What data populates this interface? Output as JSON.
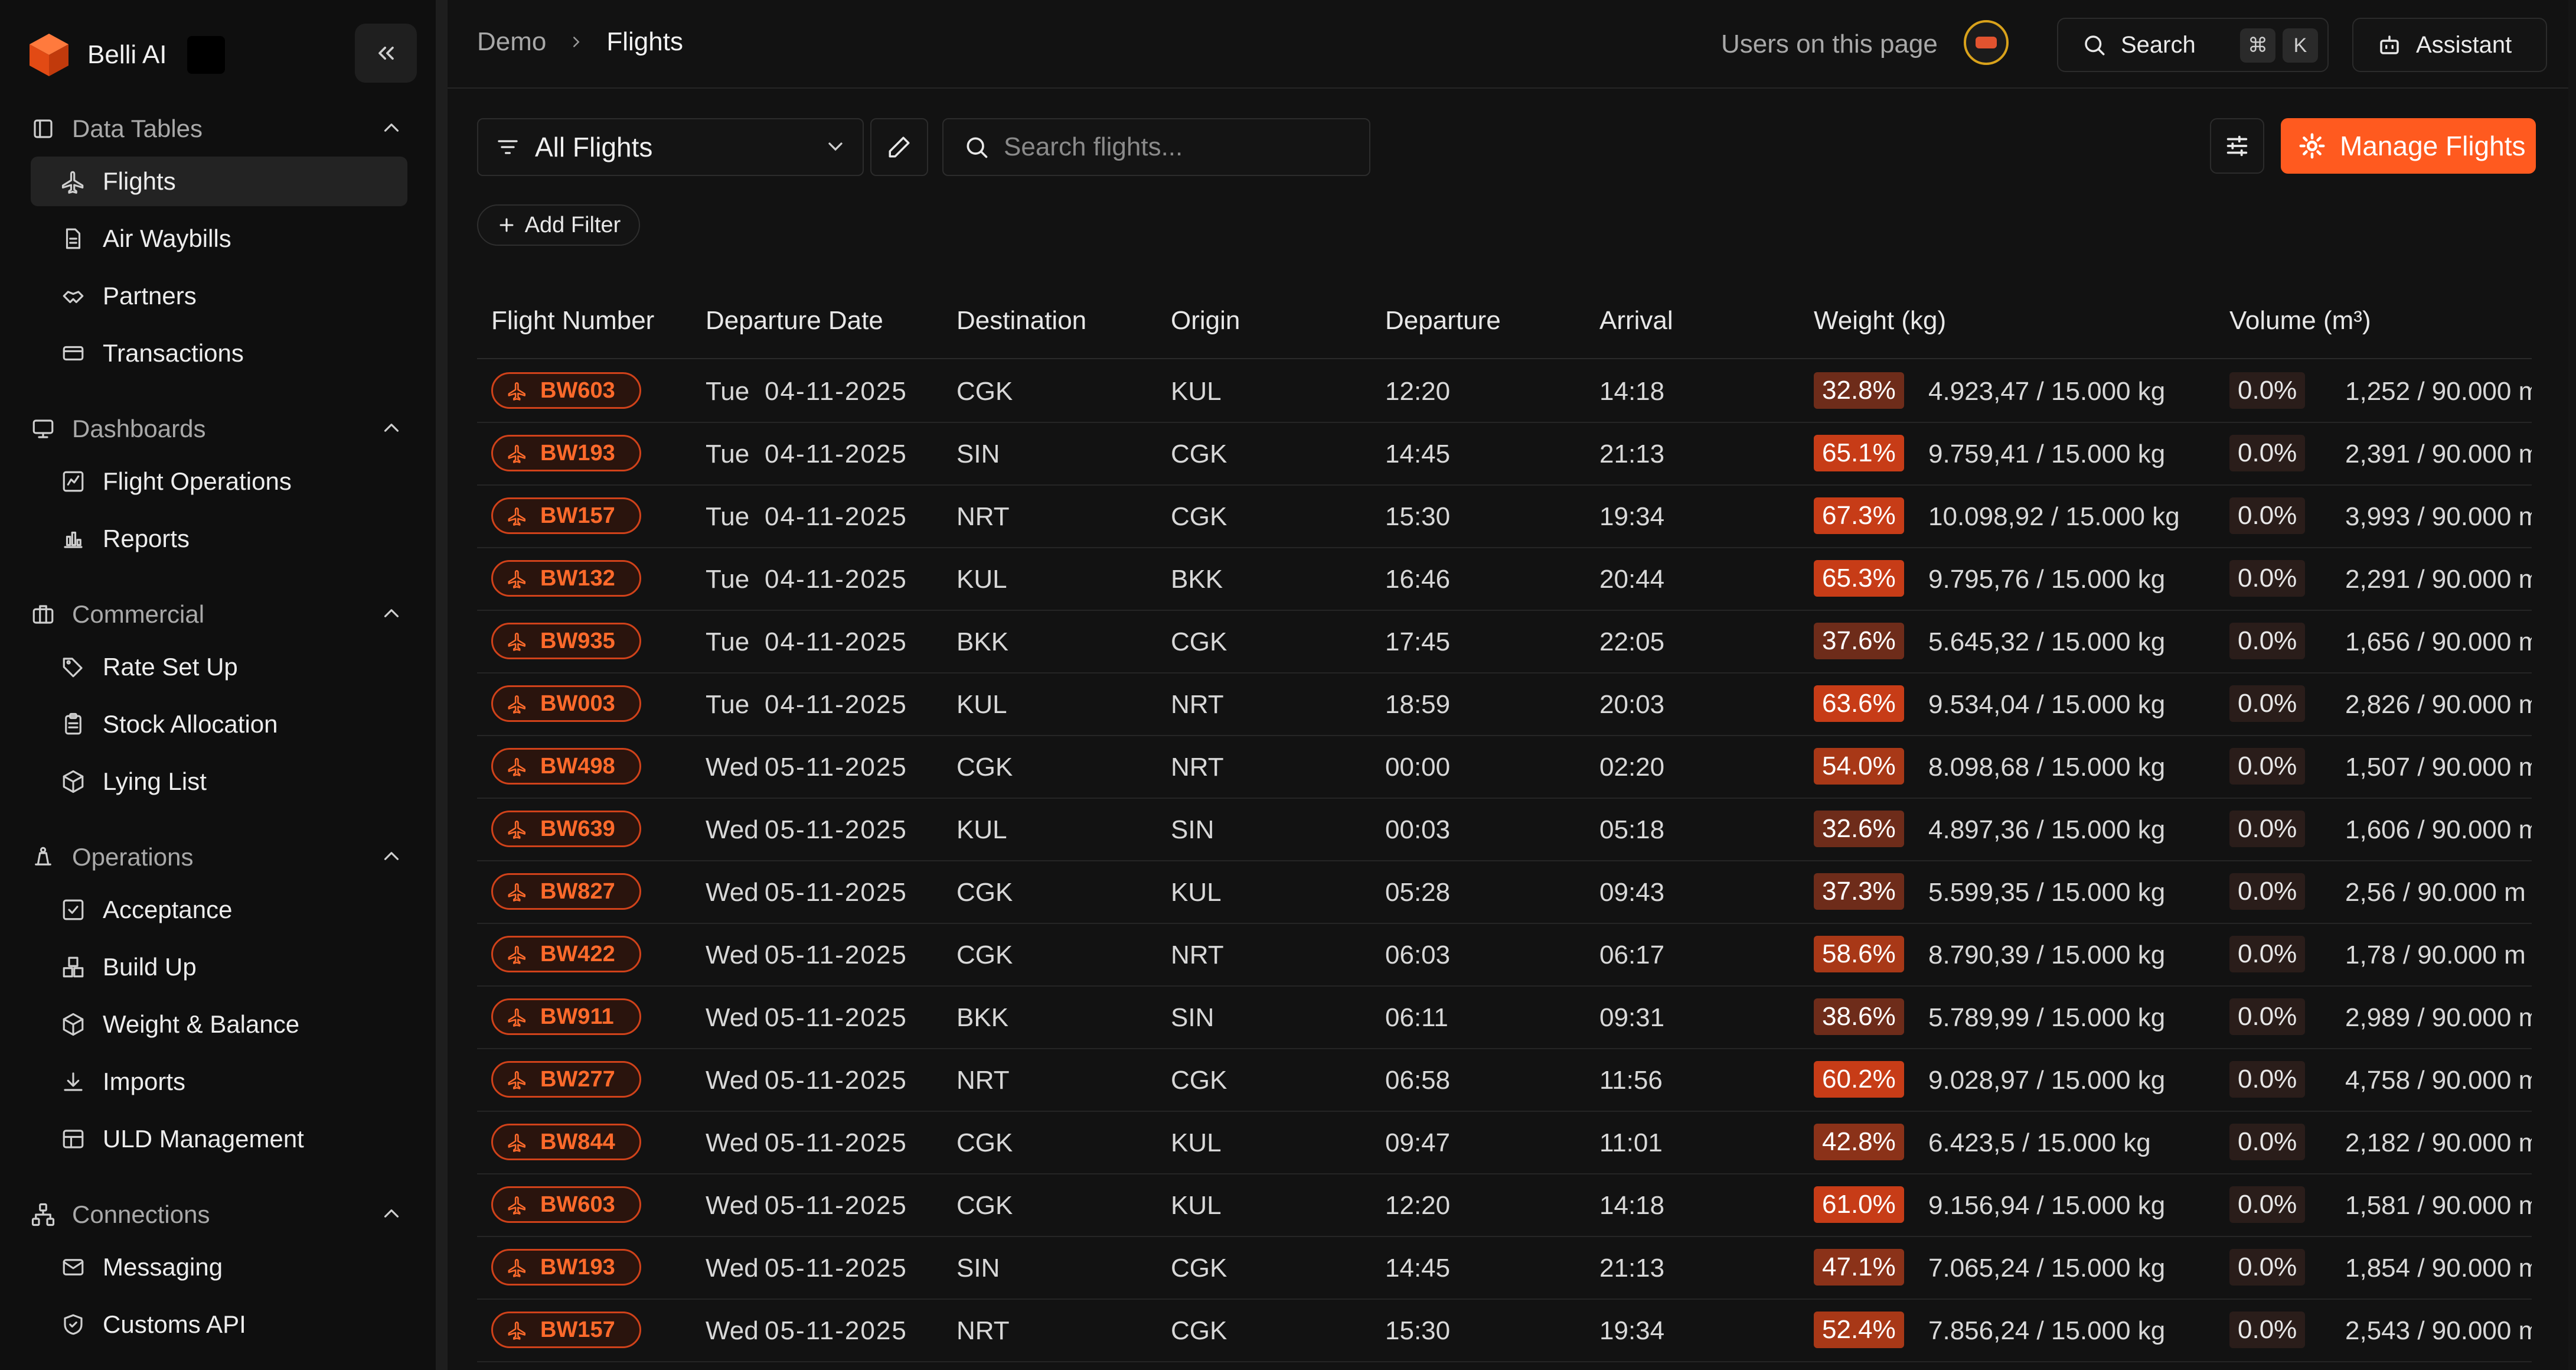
{
  "app": {
    "name": "Belli AI"
  },
  "sidebar": {
    "sections": [
      {
        "title": "Data Tables",
        "items": [
          "Flights",
          "Air Waybills",
          "Partners",
          "Transactions"
        ]
      },
      {
        "title": "Dashboards",
        "items": [
          "Flight Operations",
          "Reports"
        ]
      },
      {
        "title": "Commercial",
        "items": [
          "Rate Set Up",
          "Stock Allocation",
          "Lying List"
        ]
      },
      {
        "title": "Operations",
        "items": [
          "Acceptance",
          "Build Up",
          "Weight & Balance",
          "Imports",
          "ULD Management"
        ]
      },
      {
        "title": "Connections",
        "items": [
          "Messaging",
          "Customs API"
        ]
      }
    ],
    "active_item": "Flights"
  },
  "header": {
    "breadcrumb": [
      "Demo",
      "Flights"
    ],
    "users_label": "Users on this page",
    "search_label": "Search",
    "search_shortcut": [
      "⌘",
      "K"
    ],
    "assistant_label": "Assistant"
  },
  "toolbar": {
    "view_label": "All Flights",
    "search_placeholder": "Search flights...",
    "manage_label": "Manage Flights",
    "add_filter_label": "Add Filter"
  },
  "table": {
    "columns": [
      "Flight Number",
      "Departure Date",
      "Destination",
      "Origin",
      "Departure",
      "Arrival",
      "Weight (kg)",
      "Volume (m³)"
    ],
    "rows": [
      {
        "flight": "BW603",
        "day": "Tue",
        "date": "04-11-2025",
        "dest": "CGK",
        "origin": "KUL",
        "dep": "12:20",
        "arr": "14:18",
        "wpct": "32.8%",
        "wtext": "4.923,47 / 15.000 kg",
        "vpct": "0.0%",
        "vtext": "1,252 / 90.000 m"
      },
      {
        "flight": "BW193",
        "day": "Tue",
        "date": "04-11-2025",
        "dest": "SIN",
        "origin": "CGK",
        "dep": "14:45",
        "arr": "21:13",
        "wpct": "65.1%",
        "wtext": "9.759,41 / 15.000 kg",
        "vpct": "0.0%",
        "vtext": "2,391 / 90.000 m"
      },
      {
        "flight": "BW157",
        "day": "Tue",
        "date": "04-11-2025",
        "dest": "NRT",
        "origin": "CGK",
        "dep": "15:30",
        "arr": "19:34",
        "wpct": "67.3%",
        "wtext": "10.098,92 / 15.000 kg",
        "vpct": "0.0%",
        "vtext": "3,993 / 90.000 m"
      },
      {
        "flight": "BW132",
        "day": "Tue",
        "date": "04-11-2025",
        "dest": "KUL",
        "origin": "BKK",
        "dep": "16:46",
        "arr": "20:44",
        "wpct": "65.3%",
        "wtext": "9.795,76 / 15.000 kg",
        "vpct": "0.0%",
        "vtext": "2,291 / 90.000 m"
      },
      {
        "flight": "BW935",
        "day": "Tue",
        "date": "04-11-2025",
        "dest": "BKK",
        "origin": "CGK",
        "dep": "17:45",
        "arr": "22:05",
        "wpct": "37.6%",
        "wtext": "5.645,32 / 15.000 kg",
        "vpct": "0.0%",
        "vtext": "1,656 / 90.000 m"
      },
      {
        "flight": "BW003",
        "day": "Tue",
        "date": "04-11-2025",
        "dest": "KUL",
        "origin": "NRT",
        "dep": "18:59",
        "arr": "20:03",
        "wpct": "63.6%",
        "wtext": "9.534,04 / 15.000 kg",
        "vpct": "0.0%",
        "vtext": "2,826 / 90.000 m"
      },
      {
        "flight": "BW498",
        "day": "Wed",
        "date": "05-11-2025",
        "dest": "CGK",
        "origin": "NRT",
        "dep": "00:00",
        "arr": "02:20",
        "wpct": "54.0%",
        "wtext": "8.098,68 / 15.000 kg",
        "vpct": "0.0%",
        "vtext": "1,507 / 90.000 m"
      },
      {
        "flight": "BW639",
        "day": "Wed",
        "date": "05-11-2025",
        "dest": "KUL",
        "origin": "SIN",
        "dep": "00:03",
        "arr": "05:18",
        "wpct": "32.6%",
        "wtext": "4.897,36 / 15.000 kg",
        "vpct": "0.0%",
        "vtext": "1,606 / 90.000 m"
      },
      {
        "flight": "BW827",
        "day": "Wed",
        "date": "05-11-2025",
        "dest": "CGK",
        "origin": "KUL",
        "dep": "05:28",
        "arr": "09:43",
        "wpct": "37.3%",
        "wtext": "5.599,35 / 15.000 kg",
        "vpct": "0.0%",
        "vtext": "2,56 / 90.000 m"
      },
      {
        "flight": "BW422",
        "day": "Wed",
        "date": "05-11-2025",
        "dest": "CGK",
        "origin": "NRT",
        "dep": "06:03",
        "arr": "06:17",
        "wpct": "58.6%",
        "wtext": "8.790,39 / 15.000 kg",
        "vpct": "0.0%",
        "vtext": "1,78 / 90.000 m"
      },
      {
        "flight": "BW911",
        "day": "Wed",
        "date": "05-11-2025",
        "dest": "BKK",
        "origin": "SIN",
        "dep": "06:11",
        "arr": "09:31",
        "wpct": "38.6%",
        "wtext": "5.789,99 / 15.000 kg",
        "vpct": "0.0%",
        "vtext": "2,989 / 90.000 m"
      },
      {
        "flight": "BW277",
        "day": "Wed",
        "date": "05-11-2025",
        "dest": "NRT",
        "origin": "CGK",
        "dep": "06:58",
        "arr": "11:56",
        "wpct": "60.2%",
        "wtext": "9.028,97 / 15.000 kg",
        "vpct": "0.0%",
        "vtext": "4,758 / 90.000 m"
      },
      {
        "flight": "BW844",
        "day": "Wed",
        "date": "05-11-2025",
        "dest": "CGK",
        "origin": "KUL",
        "dep": "09:47",
        "arr": "11:01",
        "wpct": "42.8%",
        "wtext": "6.423,5 / 15.000 kg",
        "vpct": "0.0%",
        "vtext": "2,182 / 90.000 m"
      },
      {
        "flight": "BW603",
        "day": "Wed",
        "date": "05-11-2025",
        "dest": "CGK",
        "origin": "KUL",
        "dep": "12:20",
        "arr": "14:18",
        "wpct": "61.0%",
        "wtext": "9.156,94 / 15.000 kg",
        "vpct": "0.0%",
        "vtext": "1,581 / 90.000 m"
      },
      {
        "flight": "BW193",
        "day": "Wed",
        "date": "05-11-2025",
        "dest": "SIN",
        "origin": "CGK",
        "dep": "14:45",
        "arr": "21:13",
        "wpct": "47.1%",
        "wtext": "7.065,24 / 15.000 kg",
        "vpct": "0.0%",
        "vtext": "1,854 / 90.000 m"
      },
      {
        "flight": "BW157",
        "day": "Wed",
        "date": "05-11-2025",
        "dest": "NRT",
        "origin": "CGK",
        "dep": "15:30",
        "arr": "19:34",
        "wpct": "52.4%",
        "wtext": "7.856,24 / 15.000 kg",
        "vpct": "0.0%",
        "vtext": "2,543 / 90.000 m"
      }
    ]
  },
  "colors": {
    "accent": "#ff5a1f",
    "background": "#121212",
    "sidebar": "#0f0f0f"
  }
}
